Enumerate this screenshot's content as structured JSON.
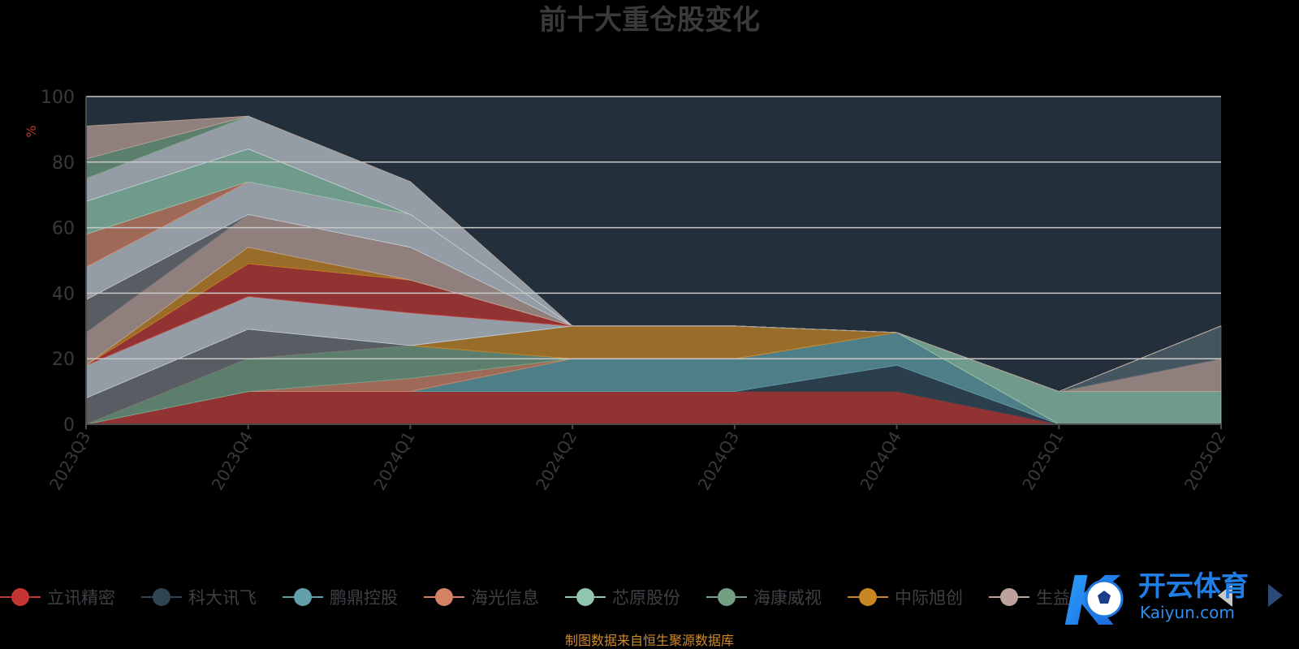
{
  "title": "前十大重仓股变化",
  "source_note": "制图数据来自恒生聚源数据库",
  "watermark_text": "开云体育",
  "watermark_subtext": "Kaiyun.com",
  "colors": {
    "background": "#000000",
    "plot_background": "#23303b",
    "title": "#3a3a3a",
    "axis_text": "#3a3a3a",
    "ylabel": "#c23531",
    "source_note": "#d08a2a",
    "gridline": "#c8c8c8"
  },
  "chart_data": {
    "type": "area",
    "stacked": true,
    "title": "前十大重仓股变化",
    "xlabel": "",
    "ylabel": "%",
    "ylim": [
      0,
      100
    ],
    "yticks": [
      0,
      20,
      40,
      60,
      80,
      100
    ],
    "grid": true,
    "legend_position": "bottom",
    "categories": [
      "2023Q3",
      "2023Q4",
      "2024Q1",
      "2024Q2",
      "2024Q3",
      "2024Q4",
      "2025Q1",
      "2025Q2"
    ],
    "series": [
      {
        "name": "立讯精密",
        "color": "#c23531",
        "values": [
          0,
          10,
          10,
          10,
          10,
          10,
          0,
          0
        ]
      },
      {
        "name": "科大讯飞",
        "color": "#2f4554",
        "values": [
          0,
          0,
          0,
          0,
          0,
          8,
          0,
          0
        ]
      },
      {
        "name": "鹏鼎控股",
        "color": "#61a0a8",
        "values": [
          0,
          0,
          0,
          10,
          10,
          10,
          0,
          0
        ]
      },
      {
        "name": "海光信息",
        "color": "#d48265",
        "values": [
          0,
          0,
          4,
          0,
          0,
          0,
          0,
          0
        ]
      },
      {
        "name": "芯原股份",
        "color": "#91c7ae",
        "values": [
          0,
          0,
          0,
          0,
          0,
          0,
          10,
          10
        ]
      },
      {
        "name": "海康威视",
        "color": "#749f83",
        "values": [
          0,
          10,
          10,
          0,
          0,
          0,
          0,
          0
        ]
      },
      {
        "name": "中际旭创",
        "color": "#ca8622",
        "values": [
          0,
          0,
          0,
          10,
          10,
          0,
          0,
          0
        ]
      },
      {
        "name": "生益科技",
        "color": "#bda29a",
        "values": [
          0,
          0,
          0,
          0,
          0,
          0,
          0,
          10
        ]
      },
      {
        "name": "",
        "color": "#6e7074",
        "values": [
          8,
          9,
          0,
          0,
          0,
          0,
          0,
          0
        ]
      },
      {
        "name": "",
        "color": "#546570",
        "values": [
          0,
          0,
          0,
          0,
          0,
          0,
          0,
          10
        ]
      },
      {
        "name": "",
        "color": "#c4ccd3",
        "values": [
          10,
          10,
          10,
          0,
          0,
          0,
          0,
          0
        ]
      },
      {
        "name": "",
        "color": "#c23531",
        "values": [
          0,
          10,
          10,
          0,
          0,
          0,
          0,
          0
        ]
      },
      {
        "name": "",
        "color": "#ca8622",
        "values": [
          0,
          5,
          0,
          0,
          0,
          0,
          0,
          0
        ]
      },
      {
        "name": "",
        "color": "#bda29a",
        "values": [
          10,
          10,
          10,
          0,
          0,
          0,
          0,
          0
        ]
      },
      {
        "name": "",
        "color": "#6e7074",
        "values": [
          10,
          0,
          0,
          0,
          0,
          0,
          0,
          0
        ]
      },
      {
        "name": "",
        "color": "#c4ccd3",
        "values": [
          10,
          10,
          10,
          0,
          0,
          0,
          0,
          0
        ]
      },
      {
        "name": "",
        "color": "#d48265",
        "values": [
          10,
          0,
          0,
          0,
          0,
          0,
          0,
          0
        ]
      },
      {
        "name": "",
        "color": "#91c7ae",
        "values": [
          10,
          10,
          0,
          0,
          0,
          0,
          0,
          0
        ]
      },
      {
        "name": "",
        "color": "#c4ccd3",
        "values": [
          7,
          10,
          10,
          0,
          0,
          0,
          0,
          0
        ]
      },
      {
        "name": "",
        "color": "#749f83",
        "values": [
          6,
          0,
          0,
          0,
          0,
          0,
          0,
          0
        ]
      },
      {
        "name": "",
        "color": "#bda29a",
        "values": [
          10,
          0,
          0,
          0,
          0,
          0,
          0,
          0
        ]
      }
    ]
  },
  "legend": {
    "items": [
      {
        "label": "立讯精密",
        "color": "#c23531"
      },
      {
        "label": "科大讯飞",
        "color": "#2f4554"
      },
      {
        "label": "鹏鼎控股",
        "color": "#61a0a8"
      },
      {
        "label": "海光信息",
        "color": "#d48265"
      },
      {
        "label": "芯原股份",
        "color": "#91c7ae"
      },
      {
        "label": "海康威视",
        "color": "#749f83"
      },
      {
        "label": "中际旭创",
        "color": "#ca8622"
      },
      {
        "label": "生益科技",
        "color": "#bda29a"
      }
    ]
  }
}
